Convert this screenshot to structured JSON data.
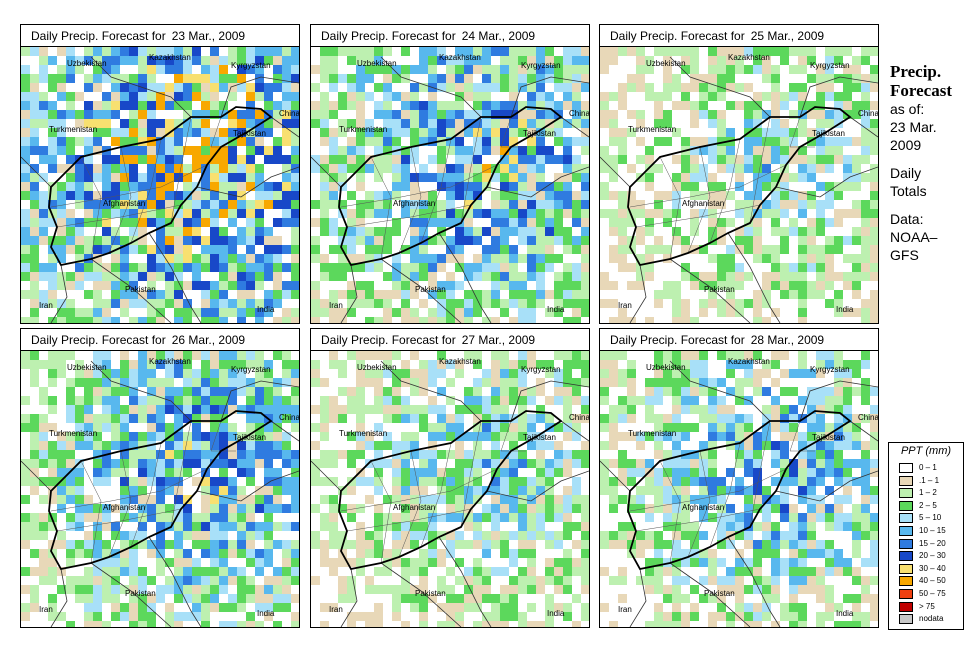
{
  "title_prefix": "Daily Precip. Forecast for",
  "panels": [
    {
      "date": "23 Mar., 2009",
      "seed": 11,
      "wet": 1.0
    },
    {
      "date": "24 Mar., 2009",
      "seed": 23,
      "wet": 0.75
    },
    {
      "date": "25 Mar., 2009",
      "seed": 37,
      "wet": 0.45
    },
    {
      "date": "26 Mar., 2009",
      "seed": 41,
      "wet": 0.7
    },
    {
      "date": "27 Mar., 2009",
      "seed": 53,
      "wet": 0.5
    },
    {
      "date": "28 Mar., 2009",
      "seed": 67,
      "wet": 0.6
    }
  ],
  "place_labels": {
    "uzbekistan": "Uzbekistan",
    "kazakhstan": "Kazakhstan",
    "kyrgyzstan": "Kyrgyzstan",
    "turkmenistan": "Turkmenistan",
    "tajikistan": "Tajikistan",
    "china": "China",
    "afghanistan": "Afghanistan",
    "pakistan": "Pakistan",
    "iran": "Iran",
    "india": "India"
  },
  "side_panel": {
    "heading_line1": "Precip.",
    "heading_line2": "Forecast",
    "asof": "as of:",
    "date_line1": "23 Mar.",
    "date_line2": "2009",
    "daily": "Daily",
    "totals": "Totals",
    "data_label": "Data:",
    "source_line1": "NOAA–",
    "source_line2": "GFS"
  },
  "legend": {
    "title": "PPT (mm)",
    "items": [
      {
        "label": "0 – 1",
        "color": "#ffffff"
      },
      {
        "label": ".1 – 1",
        "color": "#e8d8b8"
      },
      {
        "label": "1 – 2",
        "color": "#bdf0b0"
      },
      {
        "label": "2 – 5",
        "color": "#5cd85c"
      },
      {
        "label": "5 – 10",
        "color": "#a8e0f8"
      },
      {
        "label": "10 – 15",
        "color": "#58b8ee"
      },
      {
        "label": "15 – 20",
        "color": "#2f7be0"
      },
      {
        "label": "20 – 30",
        "color": "#1848c8"
      },
      {
        "label": "30 – 40",
        "color": "#f8e070"
      },
      {
        "label": "40 – 50",
        "color": "#f8a800"
      },
      {
        "label": "50 – 75",
        "color": "#f04010"
      },
      {
        "label": "> 75",
        "color": "#c00000"
      },
      {
        "label": "nodata",
        "color": "#c8c8c8"
      }
    ]
  }
}
